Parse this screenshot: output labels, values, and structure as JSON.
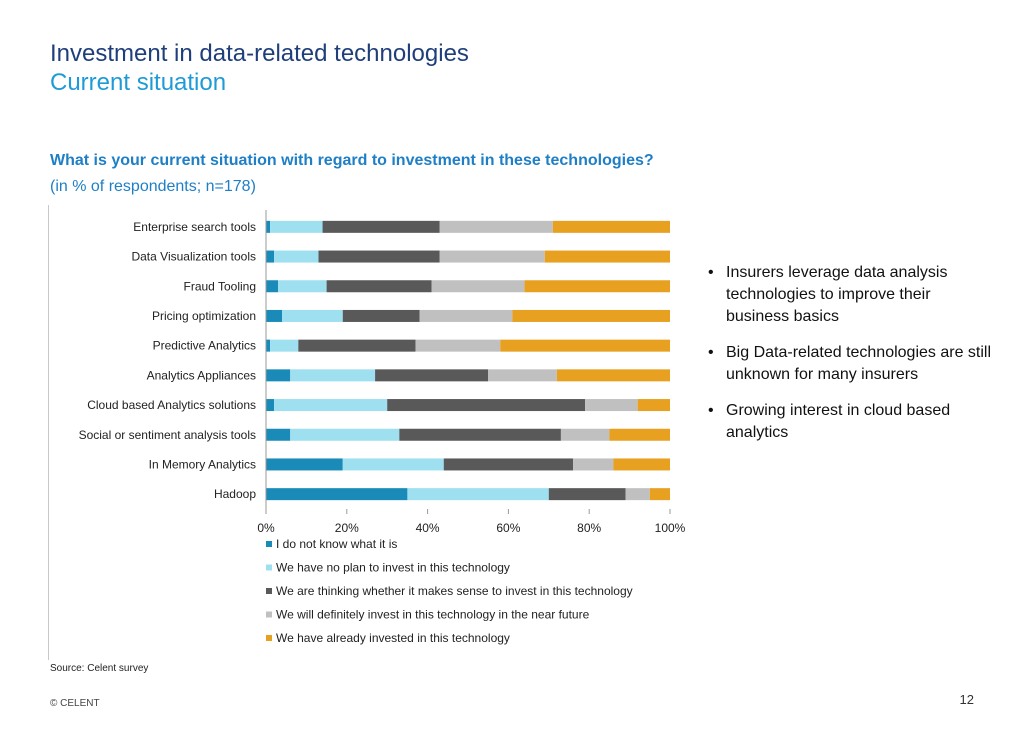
{
  "slide": {
    "title": "Investment in data-related technologies",
    "subtitle": "Current situation",
    "question": "What is your current situation with regard to investment in these technologies?",
    "respondents": "(in % of respondents; n=178)",
    "bullets": [
      "Insurers leverage data analysis technologies to improve their business basics",
      "Big Data-related technologies are still unknown for many insurers",
      "Growing interest in cloud based analytics"
    ],
    "source": "Source: Celent survey",
    "copyright": "© CELENT",
    "page_number": "12"
  },
  "chart_data": {
    "type": "bar",
    "orientation": "horizontal",
    "stacked": true,
    "categories": [
      "Enterprise search tools",
      "Data Visualization tools",
      "Fraud Tooling",
      "Pricing optimization",
      "Predictive Analytics",
      "Analytics Appliances",
      "Cloud based Analytics solutions",
      "Social or sentiment analysis tools",
      "In Memory Analytics",
      "Hadoop"
    ],
    "series": [
      {
        "name": "I do not know what it is",
        "color": "#1a8ab8",
        "values": [
          1,
          2,
          3,
          4,
          1,
          6,
          2,
          6,
          19,
          35
        ]
      },
      {
        "name": "We have no plan to invest in this technology",
        "color": "#9ee0ef",
        "values": [
          13,
          11,
          12,
          15,
          7,
          21,
          28,
          27,
          25,
          35
        ]
      },
      {
        "name": "We are thinking whether it makes sense to invest in this technology",
        "color": "#595959",
        "values": [
          29,
          30,
          26,
          19,
          29,
          28,
          49,
          40,
          32,
          19
        ]
      },
      {
        "name": "We will definitely invest in this technology in the near future",
        "color": "#c0c0c0",
        "values": [
          28,
          26,
          23,
          23,
          21,
          17,
          13,
          12,
          10,
          6
        ]
      },
      {
        "name": "We have already invested in this technology",
        "color": "#e8a021",
        "values": [
          29,
          31,
          36,
          39,
          42,
          28,
          8,
          15,
          14,
          5
        ]
      }
    ],
    "x_ticks": [
      "0%",
      "20%",
      "40%",
      "60%",
      "80%",
      "100%"
    ],
    "xlim": [
      0,
      100
    ],
    "grid": false,
    "legend_position": "bottom"
  }
}
